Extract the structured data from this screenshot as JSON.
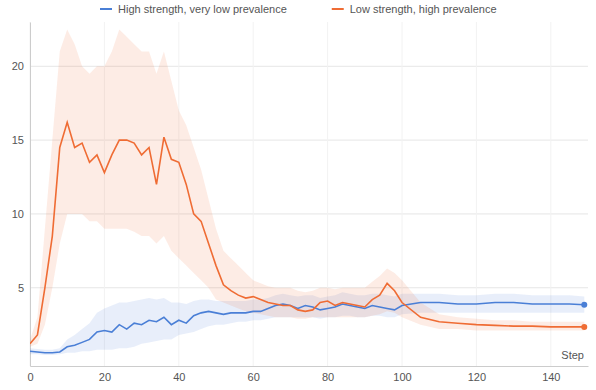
{
  "chart_data": {
    "type": "line",
    "x_label": "Step",
    "legend": "top",
    "grid": true,
    "xlim": [
      0,
      150
    ],
    "xticks": [
      0,
      20,
      40,
      60,
      80,
      100,
      120,
      140
    ],
    "ylim": [
      -0.3,
      23
    ],
    "yticks": [
      5,
      10,
      15,
      20
    ],
    "x": [
      0,
      2,
      4,
      6,
      8,
      10,
      12,
      14,
      16,
      18,
      20,
      22,
      24,
      26,
      28,
      30,
      32,
      34,
      36,
      38,
      40,
      42,
      44,
      46,
      48,
      50,
      52,
      54,
      56,
      58,
      60,
      62,
      64,
      66,
      68,
      70,
      72,
      74,
      76,
      78,
      80,
      82,
      84,
      86,
      88,
      90,
      92,
      94,
      96,
      98,
      100,
      105,
      110,
      115,
      120,
      125,
      130,
      135,
      140,
      145,
      149
    ],
    "series": [
      {
        "name": "High strength, very low prevalence",
        "color": "#4a7fd6",
        "marker": "end",
        "values": [
          0.7,
          0.65,
          0.6,
          0.6,
          0.65,
          1.0,
          1.1,
          1.3,
          1.5,
          2.0,
          2.1,
          2.0,
          2.5,
          2.2,
          2.6,
          2.5,
          2.8,
          2.7,
          3.0,
          2.5,
          2.8,
          2.6,
          3.1,
          3.3,
          3.4,
          3.3,
          3.2,
          3.3,
          3.3,
          3.3,
          3.4,
          3.4,
          3.6,
          3.8,
          3.9,
          3.8,
          3.6,
          3.8,
          3.7,
          3.5,
          3.6,
          3.7,
          3.9,
          3.8,
          3.7,
          3.6,
          3.8,
          3.7,
          3.6,
          3.5,
          3.8,
          4.0,
          4.0,
          3.9,
          3.9,
          4.0,
          4.0,
          3.9,
          3.9,
          3.9,
          3.85
        ],
        "lower": [
          0.5,
          0.5,
          0.45,
          0.45,
          0.5,
          0.6,
          0.6,
          0.7,
          0.7,
          0.8,
          0.8,
          0.8,
          0.9,
          0.9,
          1.0,
          1.2,
          1.3,
          1.4,
          1.5,
          1.5,
          1.8,
          1.9,
          2.0,
          2.2,
          2.4,
          2.5,
          2.5,
          2.6,
          2.7,
          2.7,
          2.8,
          2.8,
          2.9,
          3.0,
          3.0,
          3.0,
          3.0,
          3.0,
          3.0,
          2.9,
          3.0,
          3.0,
          3.1,
          3.1,
          3.0,
          3.0,
          3.1,
          3.1,
          3.0,
          3.0,
          3.2,
          3.3,
          3.3,
          3.3,
          3.3,
          3.3,
          3.3,
          3.3,
          3.3,
          3.3,
          3.3
        ],
        "upper": [
          0.9,
          0.85,
          0.8,
          0.8,
          0.9,
          1.5,
          1.8,
          2.2,
          2.6,
          3.3,
          3.6,
          3.8,
          4.0,
          4.0,
          4.1,
          4.2,
          4.3,
          4.2,
          4.3,
          4.0,
          4.0,
          3.9,
          4.1,
          4.2,
          4.2,
          4.1,
          4.1,
          4.1,
          4.1,
          4.1,
          4.2,
          4.2,
          4.3,
          4.5,
          4.6,
          4.5,
          4.4,
          4.5,
          4.5,
          4.3,
          4.4,
          4.5,
          4.7,
          4.6,
          4.5,
          4.5,
          4.6,
          4.6,
          4.5,
          4.4,
          4.6,
          4.6,
          4.6,
          4.5,
          4.5,
          4.6,
          4.6,
          4.5,
          4.5,
          4.5,
          4.4
        ]
      },
      {
        "name": "Low strength, high prevalence",
        "color": "#ef6c34",
        "marker": "end",
        "values": [
          1.2,
          1.8,
          5.0,
          8.5,
          14.5,
          16.2,
          14.5,
          14.8,
          13.5,
          14.0,
          12.8,
          14.0,
          15.0,
          15.0,
          14.8,
          14.0,
          14.5,
          12.0,
          15.2,
          13.7,
          13.5,
          12.0,
          10.0,
          9.5,
          8.0,
          6.5,
          5.2,
          4.8,
          4.5,
          4.3,
          4.4,
          4.2,
          4.0,
          3.9,
          3.8,
          3.8,
          3.5,
          3.4,
          3.5,
          4.0,
          4.1,
          3.8,
          4.0,
          3.9,
          3.8,
          3.7,
          4.2,
          4.5,
          5.3,
          4.8,
          4.0,
          3.0,
          2.7,
          2.6,
          2.5,
          2.45,
          2.4,
          2.4,
          2.35,
          2.35,
          2.35
        ],
        "lower": [
          1.0,
          1.2,
          2.5,
          5.0,
          8.0,
          10.0,
          10.0,
          10.0,
          9.5,
          9.5,
          9.0,
          9.0,
          9.0,
          9.0,
          8.8,
          8.5,
          8.5,
          8.0,
          8.5,
          7.5,
          7.0,
          6.5,
          6.0,
          5.5,
          5.0,
          4.2,
          4.0,
          3.8,
          3.6,
          3.4,
          3.3,
          3.2,
          3.1,
          3.0,
          3.0,
          3.0,
          2.9,
          2.9,
          3.0,
          3.0,
          3.0,
          3.0,
          3.0,
          3.0,
          3.0,
          3.0,
          3.1,
          3.2,
          3.4,
          3.3,
          3.0,
          2.5,
          2.2,
          2.2,
          2.1,
          2.1,
          2.1,
          2.1,
          2.1,
          2.1,
          2.1
        ],
        "upper": [
          1.5,
          3.0,
          9.0,
          15.0,
          21.0,
          22.5,
          21.5,
          20.0,
          19.5,
          20.0,
          20.0,
          21.0,
          22.5,
          22.0,
          21.5,
          21.0,
          21.0,
          19.5,
          21.0,
          19.0,
          17.0,
          16.0,
          14.5,
          13.0,
          11.0,
          9.0,
          7.5,
          7.0,
          6.5,
          6.0,
          5.5,
          5.3,
          5.1,
          5.0,
          5.0,
          5.0,
          4.8,
          4.7,
          4.8,
          5.0,
          5.0,
          4.9,
          5.0,
          5.0,
          5.0,
          5.0,
          5.4,
          5.8,
          6.3,
          6.0,
          5.5,
          4.0,
          3.2,
          3.0,
          2.9,
          2.8,
          2.8,
          2.7,
          2.7,
          2.7,
          2.7
        ]
      }
    ]
  }
}
